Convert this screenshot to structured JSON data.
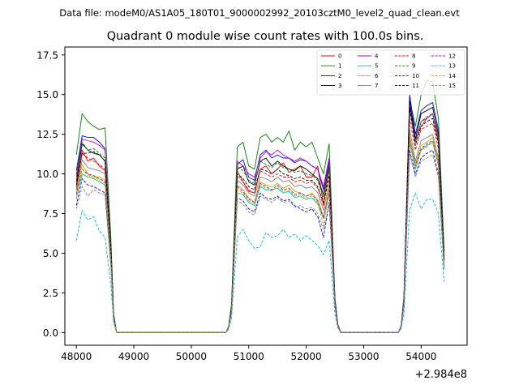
{
  "chart_data": {
    "type": "line",
    "suptitle": "Data file: modeM0/AS1A05_180T01_9000002992_20103cztM0_level2_quad_clean.evt",
    "title": "Quadrant 0 module wise count rates with 100.0s bins.",
    "xlabel": "",
    "ylabel": "",
    "offset_label": "+2.984e8",
    "xlim": [
      47800,
      54800
    ],
    "ylim": [
      -0.8,
      18.0
    ],
    "xticks": [
      48000,
      49000,
      50000,
      51000,
      52000,
      53000,
      54000
    ],
    "xtick_labels": [
      "48000",
      "49000",
      "50000",
      "51000",
      "52000",
      "53000",
      "54000"
    ],
    "yticks": [
      0.0,
      2.5,
      5.0,
      7.5,
      10.0,
      12.5,
      15.0,
      17.5
    ],
    "ytick_labels": [
      "0.0",
      "2.5",
      "5.0",
      "7.5",
      "10.0",
      "12.5",
      "15.0",
      "17.5"
    ],
    "legend_position": "upper-right",
    "x": [
      48000,
      48100,
      48200,
      48300,
      48400,
      48500,
      48600,
      48650,
      48700,
      50600,
      50650,
      50700,
      50800,
      50900,
      51000,
      51100,
      51200,
      51300,
      51400,
      51500,
      51600,
      51700,
      51800,
      51900,
      52000,
      52100,
      52200,
      52300,
      52400,
      52500,
      52550,
      52600,
      53600,
      53650,
      53700,
      53800,
      53900,
      54000,
      54100,
      54200,
      54300,
      54400
    ],
    "series": [
      {
        "name": "0",
        "color": "#ff0000",
        "dash": "solid",
        "values": [
          9.0,
          11.5,
          10.8,
          11.0,
          10.5,
          10.2,
          5.0,
          1.0,
          0.0,
          0.0,
          0.3,
          1.5,
          10.2,
          9.5,
          8.9,
          8.8,
          10.3,
          10.5,
          10.0,
          10.3,
          10.7,
          10.1,
          10.3,
          10.5,
          9.8,
          9.8,
          10.5,
          8.0,
          10.4,
          2.0,
          0.5,
          0.0,
          0.0,
          0.3,
          2.0,
          14.5,
          12.2,
          13.0,
          13.5,
          13.8,
          12.0,
          4.5
        ]
      },
      {
        "name": "1",
        "color": "#008000",
        "dash": "solid",
        "values": [
          11.2,
          13.8,
          13.3,
          13.0,
          12.8,
          12.9,
          6.0,
          1.2,
          0.0,
          0.0,
          0.4,
          1.8,
          11.7,
          12.0,
          10.5,
          10.3,
          12.3,
          12.5,
          12.0,
          12.3,
          12.0,
          12.7,
          11.5,
          12.0,
          11.7,
          12.0,
          11.0,
          10.0,
          11.9,
          2.2,
          0.5,
          0.0,
          0.0,
          0.4,
          2.3,
          14.7,
          13.0,
          15.0,
          15.9,
          15.8,
          13.5,
          5.2
        ]
      },
      {
        "name": "2",
        "color": "#0000ff",
        "dash": "solid",
        "values": [
          10.2,
          12.4,
          12.3,
          12.3,
          12.0,
          11.6,
          5.5,
          1.1,
          0.0,
          0.0,
          0.3,
          1.6,
          10.6,
          10.9,
          9.8,
          9.6,
          11.2,
          11.5,
          11.0,
          11.2,
          11.0,
          11.0,
          10.7,
          10.9,
          10.8,
          10.5,
          10.3,
          9.0,
          10.8,
          2.1,
          0.5,
          0.0,
          0.0,
          0.3,
          2.1,
          15.0,
          12.5,
          14.0,
          14.3,
          14.5,
          12.8,
          4.8
        ]
      },
      {
        "name": "3",
        "color": "#000000",
        "dash": "solid",
        "values": [
          9.5,
          11.9,
          11.5,
          11.3,
          11.2,
          10.8,
          5.3,
          1.0,
          0.0,
          0.0,
          0.3,
          1.5,
          10.3,
          10.5,
          9.5,
          9.3,
          10.8,
          11.0,
          10.5,
          10.8,
          10.5,
          10.3,
          10.2,
          10.5,
          10.3,
          10.0,
          9.7,
          8.7,
          10.5,
          2.0,
          0.5,
          0.0,
          0.0,
          0.3,
          2.0,
          14.6,
          12.2,
          13.8,
          14.0,
          14.2,
          12.5,
          4.6
        ]
      },
      {
        "name": "4",
        "color": "#c000c0",
        "dash": "solid",
        "values": [
          9.8,
          12.2,
          12.1,
          12.0,
          11.8,
          11.5,
          5.4,
          1.1,
          0.0,
          0.0,
          0.3,
          1.6,
          10.8,
          10.5,
          10.0,
          9.8,
          11.0,
          11.4,
          11.2,
          11.5,
          11.2,
          11.0,
          10.8,
          11.0,
          10.8,
          10.5,
          10.3,
          9.2,
          11.0,
          2.1,
          0.5,
          0.0,
          0.0,
          0.3,
          2.1,
          14.3,
          12.0,
          13.3,
          13.5,
          13.8,
          12.3,
          4.7
        ]
      },
      {
        "name": "5",
        "color": "#00bfa0",
        "dash": "solid",
        "values": [
          8.5,
          10.0,
          9.8,
          9.7,
          9.5,
          9.3,
          4.5,
          0.9,
          0.0,
          0.0,
          0.3,
          1.3,
          8.8,
          8.7,
          8.2,
          8.0,
          9.2,
          9.0,
          9.0,
          9.1,
          8.8,
          8.9,
          8.5,
          8.6,
          8.4,
          8.5,
          8.1,
          7.2,
          8.8,
          1.8,
          0.4,
          0.0,
          0.0,
          0.3,
          1.8,
          12.0,
          10.3,
          11.5,
          11.8,
          12.0,
          10.5,
          4.2
        ]
      },
      {
        "name": "6",
        "color": "#b5b500",
        "dash": "solid",
        "values": [
          8.8,
          10.6,
          10.0,
          9.8,
          9.8,
          9.6,
          4.7,
          0.9,
          0.0,
          0.0,
          0.3,
          1.4,
          9.3,
          9.0,
          8.5,
          8.2,
          9.5,
          9.3,
          9.2,
          9.4,
          9.1,
          9.3,
          8.9,
          8.8,
          8.6,
          8.8,
          8.4,
          7.3,
          9.1,
          1.9,
          0.4,
          0.0,
          0.0,
          0.3,
          1.9,
          12.4,
          10.6,
          11.8,
          12.0,
          12.3,
          10.8,
          4.3
        ]
      },
      {
        "name": "7",
        "color": "#808080",
        "dash": "solid",
        "values": [
          9.0,
          10.9,
          10.4,
          10.3,
          10.2,
          10.0,
          4.9,
          1.0,
          0.0,
          0.0,
          0.3,
          1.4,
          9.6,
          9.3,
          8.8,
          8.6,
          9.8,
          9.7,
          9.5,
          9.8,
          9.5,
          9.6,
          9.2,
          9.3,
          9.1,
          9.2,
          8.8,
          7.7,
          9.4,
          1.9,
          0.4,
          0.0,
          0.0,
          0.3,
          1.9,
          12.8,
          10.8,
          12.1,
          12.3,
          12.5,
          11.0,
          4.4
        ]
      },
      {
        "name": "8",
        "color": "#ff0000",
        "dash": "dashed",
        "values": [
          9.2,
          11.3,
          11.0,
          10.8,
          10.6,
          10.3,
          5.0,
          1.0,
          0.0,
          0.0,
          0.3,
          1.5,
          9.9,
          9.5,
          9.0,
          8.8,
          10.2,
          10.0,
          9.8,
          10.0,
          9.8,
          9.8,
          9.5,
          9.6,
          9.4,
          9.5,
          9.1,
          8.0,
          9.8,
          2.0,
          0.5,
          0.0,
          0.0,
          0.3,
          2.0,
          13.5,
          11.5,
          12.8,
          13.0,
          13.2,
          11.6,
          4.5
        ]
      },
      {
        "name": "9",
        "color": "#008000",
        "dash": "dashed",
        "values": [
          10.0,
          12.0,
          11.5,
          11.6,
          11.3,
          11.0,
          5.3,
          1.0,
          0.0,
          0.0,
          0.3,
          1.5,
          10.5,
          10.2,
          9.6,
          9.4,
          10.8,
          10.6,
          10.4,
          10.7,
          10.4,
          10.3,
          10.1,
          10.2,
          10.0,
          9.9,
          9.6,
          8.5,
          10.3,
          2.0,
          0.5,
          0.0,
          0.0,
          0.3,
          2.1,
          14.0,
          12.0,
          13.3,
          13.6,
          13.8,
          12.2,
          4.7
        ]
      },
      {
        "name": "10",
        "color": "#0000ff",
        "dash": "dashed",
        "values": [
          8.0,
          9.7,
          9.3,
          9.2,
          9.0,
          8.8,
          4.3,
          0.8,
          0.0,
          0.0,
          0.3,
          1.3,
          8.5,
          8.3,
          7.8,
          7.6,
          8.8,
          8.5,
          8.4,
          8.6,
          8.3,
          8.4,
          8.0,
          7.8,
          7.6,
          7.8,
          7.3,
          6.0,
          8.2,
          1.7,
          0.4,
          0.0,
          0.0,
          0.3,
          1.7,
          11.5,
          10.0,
          11.0,
          11.3,
          11.5,
          10.0,
          4.0
        ]
      },
      {
        "name": "11",
        "color": "#000000",
        "dash": "dashed",
        "values": [
          9.3,
          11.3,
          11.3,
          11.4,
          11.2,
          10.8,
          5.2,
          1.0,
          0.0,
          0.0,
          0.3,
          1.5,
          10.0,
          9.7,
          9.2,
          9.0,
          10.3,
          10.2,
          10.0,
          10.3,
          10.0,
          9.9,
          9.7,
          9.8,
          9.6,
          9.6,
          9.2,
          8.2,
          9.9,
          2.0,
          0.5,
          0.0,
          0.0,
          0.3,
          2.0,
          14.2,
          11.8,
          13.0,
          13.3,
          13.5,
          11.9,
          4.6
        ]
      },
      {
        "name": "12",
        "color": "#c000c0",
        "dash": "dashed",
        "values": [
          8.7,
          10.3,
          10.0,
          9.9,
          9.7,
          9.5,
          4.6,
          0.9,
          0.0,
          0.0,
          0.3,
          1.4,
          9.2,
          8.9,
          8.4,
          8.2,
          9.4,
          9.2,
          9.0,
          9.3,
          9.0,
          9.1,
          8.7,
          8.8,
          8.6,
          8.7,
          8.3,
          7.2,
          8.9,
          1.8,
          0.4,
          0.0,
          0.0,
          0.3,
          1.8,
          12.2,
          10.5,
          11.6,
          11.9,
          12.1,
          10.6,
          4.2
        ]
      },
      {
        "name": "13",
        "color": "#00bfbf",
        "dash": "dashed",
        "values": [
          5.8,
          7.7,
          7.1,
          7.3,
          6.4,
          6.0,
          3.0,
          0.6,
          0.0,
          0.0,
          0.2,
          0.9,
          6.0,
          6.5,
          5.8,
          5.3,
          5.4,
          6.3,
          6.0,
          6.1,
          6.5,
          6.0,
          6.2,
          5.8,
          6.1,
          5.8,
          5.5,
          4.9,
          5.8,
          1.2,
          0.3,
          0.0,
          0.0,
          0.2,
          1.2,
          7.7,
          8.8,
          7.8,
          8.4,
          8.4,
          7.5,
          3.2
        ]
      },
      {
        "name": "14",
        "color": "#b5b500",
        "dash": "dashed",
        "values": [
          8.4,
          10.3,
          9.9,
          9.8,
          9.6,
          9.4,
          4.6,
          0.9,
          0.0,
          0.0,
          0.3,
          1.3,
          9.0,
          8.8,
          8.3,
          8.1,
          9.3,
          9.1,
          8.9,
          9.2,
          8.9,
          9.0,
          8.6,
          8.7,
          8.5,
          8.6,
          8.2,
          6.7,
          8.8,
          1.8,
          0.4,
          0.0,
          0.0,
          0.3,
          1.8,
          12.1,
          10.4,
          11.5,
          11.7,
          12.0,
          10.5,
          4.1
        ]
      },
      {
        "name": "15",
        "color": "#808080",
        "dash": "dashed",
        "values": [
          7.8,
          9.2,
          8.6,
          9.0,
          8.8,
          8.7,
          4.2,
          0.8,
          0.0,
          0.0,
          0.3,
          1.2,
          8.3,
          8.1,
          7.6,
          7.4,
          8.6,
          8.4,
          8.2,
          8.5,
          8.2,
          8.3,
          7.9,
          8.0,
          7.8,
          7.9,
          7.5,
          6.5,
          8.1,
          1.7,
          0.4,
          0.0,
          0.0,
          0.3,
          1.7,
          11.3,
          9.8,
          10.8,
          11.0,
          11.2,
          9.8,
          3.9
        ]
      }
    ]
  }
}
